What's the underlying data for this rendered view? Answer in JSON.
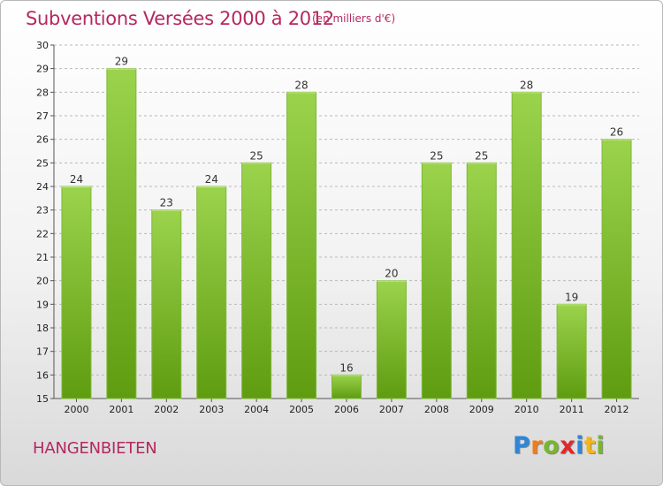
{
  "header": {
    "title": "Subventions Versées 2000 à 2012",
    "unit_note": "(en milliers d'€)"
  },
  "footer": {
    "commune": "HANGENBIETEN",
    "logo_text": "Proxiti",
    "logo_letters": [
      {
        "ch": "P",
        "color": "#2f86d6"
      },
      {
        "ch": "r",
        "color": "#f07d1a"
      },
      {
        "ch": "o",
        "color": "#76b82a"
      },
      {
        "ch": "x",
        "color": "#e0282b"
      },
      {
        "ch": "i",
        "color": "#2f86d6"
      },
      {
        "ch": "t",
        "color": "#f7b512"
      },
      {
        "ch": "i",
        "color": "#76b82a"
      }
    ]
  },
  "colors": {
    "title": "#b5285f",
    "bar_top": "#9bd34d",
    "bar_bottom": "#5f9c10",
    "grid": "#b9b9b9"
  },
  "chart_data": {
    "type": "bar",
    "title": "Subventions Versées 2000 à 2012",
    "subtitle": "(en milliers d'€)",
    "xlabel": "",
    "ylabel": "",
    "categories": [
      "2000",
      "2001",
      "2002",
      "2003",
      "2004",
      "2005",
      "2006",
      "2007",
      "2008",
      "2009",
      "2010",
      "2011",
      "2012"
    ],
    "values": [
      24,
      29,
      23,
      24,
      25,
      28,
      16,
      20,
      25,
      25,
      28,
      19,
      26
    ],
    "ylim": [
      15,
      30
    ],
    "yticks": [
      15,
      16,
      17,
      18,
      19,
      20,
      21,
      22,
      23,
      24,
      25,
      26,
      27,
      28,
      29,
      30
    ],
    "grid": true,
    "data_labels": true
  }
}
